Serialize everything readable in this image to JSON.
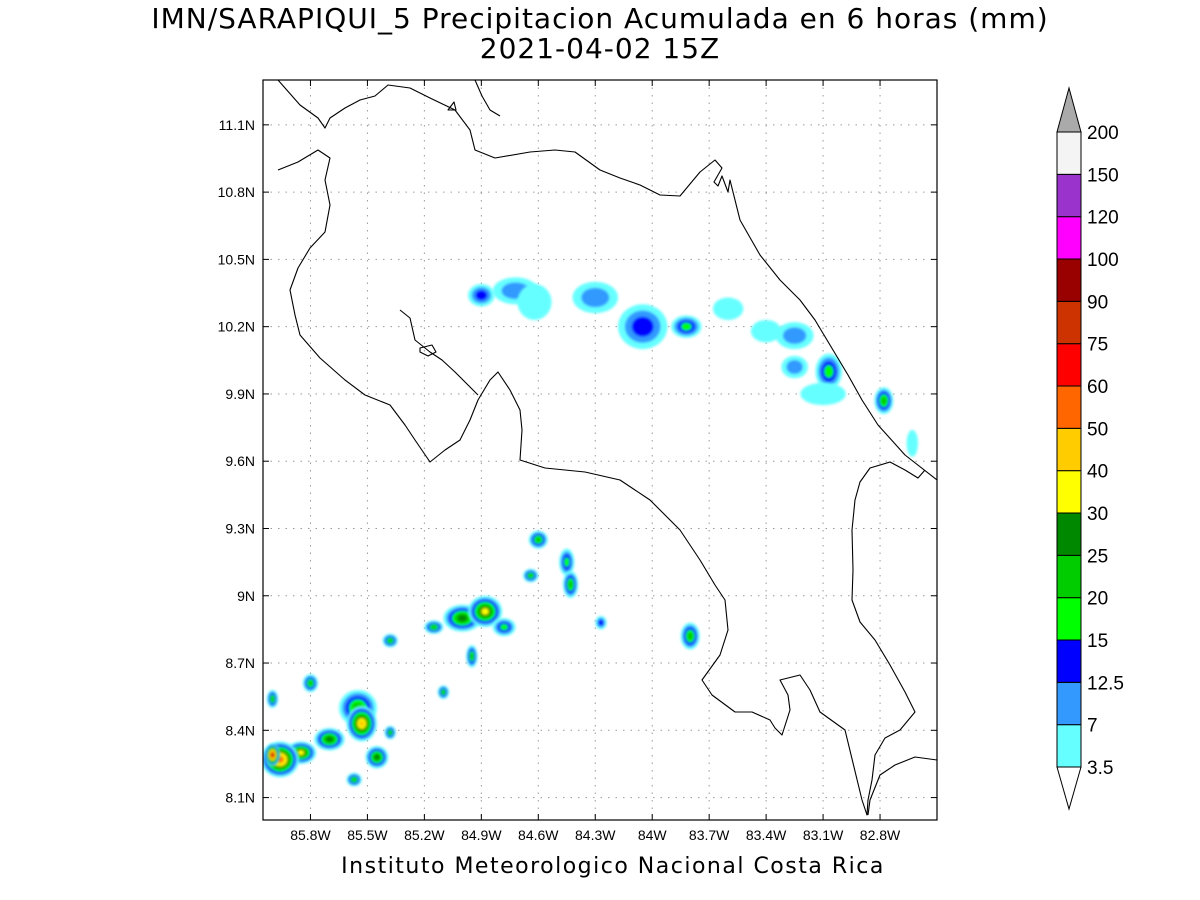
{
  "map": {
    "title": "IMN/SARAPIQUI_5 Precipitacion Acumulada en 6 horas (mm)",
    "subtitle": "2021-04-02 15Z",
    "credit": "Instituto Meteorologico Nacional Costa Rica",
    "lon_range": [
      -86.05,
      -82.5
    ],
    "lat_range": [
      8.0,
      11.3
    ],
    "lon_ticks": [
      {
        "value": -85.8,
        "label": "85.8W"
      },
      {
        "value": -85.5,
        "label": "85.5W"
      },
      {
        "value": -85.2,
        "label": "85.2W"
      },
      {
        "value": -84.9,
        "label": "84.9W"
      },
      {
        "value": -84.6,
        "label": "84.6W"
      },
      {
        "value": -84.3,
        "label": "84.3W"
      },
      {
        "value": -84.0,
        "label": "84W"
      },
      {
        "value": -83.7,
        "label": "83.7W"
      },
      {
        "value": -83.4,
        "label": "83.4W"
      },
      {
        "value": -83.1,
        "label": "83.1W"
      },
      {
        "value": -82.8,
        "label": "82.8W"
      }
    ],
    "lat_ticks": [
      {
        "value": 8.1,
        "label": "8.1N"
      },
      {
        "value": 8.4,
        "label": "8.4N"
      },
      {
        "value": 8.7,
        "label": "8.7N"
      },
      {
        "value": 9.0,
        "label": "9N"
      },
      {
        "value": 9.3,
        "label": "9.3N"
      },
      {
        "value": 9.6,
        "label": "9.6N"
      },
      {
        "value": 9.9,
        "label": "9.9N"
      },
      {
        "value": 10.2,
        "label": "10.2N"
      },
      {
        "value": 10.5,
        "label": "10.5N"
      },
      {
        "value": 10.8,
        "label": "10.8N"
      },
      {
        "value": 11.1,
        "label": "11.1N"
      }
    ],
    "grid": true
  },
  "colorbar": {
    "labels": [
      "3.5",
      "7",
      "12.5",
      "15",
      "20",
      "25",
      "30",
      "40",
      "50",
      "60",
      "75",
      "90",
      "100",
      "120",
      "150",
      "200"
    ],
    "colors": [
      "#66ffff",
      "#3399ff",
      "#0000ff",
      "#00ff00",
      "#00cc00",
      "#008800",
      "#ffff00",
      "#ffcc00",
      "#ff6600",
      "#ff0000",
      "#cc3300",
      "#990000",
      "#ff00ff",
      "#9933cc",
      "#f4f4f4",
      "#aaaaaa"
    ],
    "over_color": "#aaaaaa",
    "under_color": "#ffffff"
  },
  "precip_cells": [
    {
      "lon": -84.9,
      "lat": 10.34,
      "rx": 0.07,
      "ry": 0.05,
      "level": 2
    },
    {
      "lon": -84.72,
      "lat": 10.36,
      "rx": 0.12,
      "ry": 0.06,
      "level": 1
    },
    {
      "lon": -84.62,
      "lat": 10.31,
      "rx": 0.09,
      "ry": 0.08,
      "level": 0
    },
    {
      "lon": -84.3,
      "lat": 10.33,
      "rx": 0.12,
      "ry": 0.07,
      "level": 1
    },
    {
      "lon": -84.05,
      "lat": 10.2,
      "rx": 0.13,
      "ry": 0.1,
      "level": 2
    },
    {
      "lon": -83.82,
      "lat": 10.2,
      "rx": 0.08,
      "ry": 0.05,
      "level": 3
    },
    {
      "lon": -83.6,
      "lat": 10.28,
      "rx": 0.08,
      "ry": 0.05,
      "level": 0
    },
    {
      "lon": -83.4,
      "lat": 10.18,
      "rx": 0.08,
      "ry": 0.05,
      "level": 0
    },
    {
      "lon": -83.25,
      "lat": 10.16,
      "rx": 0.1,
      "ry": 0.06,
      "level": 1
    },
    {
      "lon": -83.25,
      "lat": 10.02,
      "rx": 0.07,
      "ry": 0.05,
      "level": 1
    },
    {
      "lon": -83.07,
      "lat": 10.0,
      "rx": 0.07,
      "ry": 0.08,
      "level": 3
    },
    {
      "lon": -83.1,
      "lat": 9.9,
      "rx": 0.12,
      "ry": 0.05,
      "level": 0
    },
    {
      "lon": -82.78,
      "lat": 9.87,
      "rx": 0.05,
      "ry": 0.06,
      "level": 4
    },
    {
      "lon": -82.63,
      "lat": 9.68,
      "rx": 0.03,
      "ry": 0.06,
      "level": 0
    },
    {
      "lon": -84.6,
      "lat": 9.25,
      "rx": 0.05,
      "ry": 0.04,
      "level": 4
    },
    {
      "lon": -84.45,
      "lat": 9.15,
      "rx": 0.04,
      "ry": 0.06,
      "level": 3
    },
    {
      "lon": -84.43,
      "lat": 9.05,
      "rx": 0.04,
      "ry": 0.06,
      "level": 4
    },
    {
      "lon": -84.64,
      "lat": 9.09,
      "rx": 0.04,
      "ry": 0.03,
      "level": 4
    },
    {
      "lon": -84.27,
      "lat": 8.88,
      "rx": 0.03,
      "ry": 0.03,
      "level": 2
    },
    {
      "lon": -83.8,
      "lat": 8.82,
      "rx": 0.05,
      "ry": 0.06,
      "level": 4
    },
    {
      "lon": -85.38,
      "lat": 8.8,
      "rx": 0.04,
      "ry": 0.03,
      "level": 4
    },
    {
      "lon": -85.15,
      "lat": 8.86,
      "rx": 0.05,
      "ry": 0.03,
      "level": 4
    },
    {
      "lon": -85.0,
      "lat": 8.9,
      "rx": 0.1,
      "ry": 0.06,
      "level": 5
    },
    {
      "lon": -84.88,
      "lat": 8.93,
      "rx": 0.09,
      "ry": 0.07,
      "level": 6
    },
    {
      "lon": -84.78,
      "lat": 8.86,
      "rx": 0.06,
      "ry": 0.04,
      "level": 3
    },
    {
      "lon": -84.95,
      "lat": 8.73,
      "rx": 0.03,
      "ry": 0.05,
      "level": 4
    },
    {
      "lon": -85.8,
      "lat": 8.61,
      "rx": 0.04,
      "ry": 0.04,
      "level": 4
    },
    {
      "lon": -86.0,
      "lat": 8.54,
      "rx": 0.03,
      "ry": 0.04,
      "level": 4
    },
    {
      "lon": -85.55,
      "lat": 8.5,
      "rx": 0.1,
      "ry": 0.08,
      "level": 4
    },
    {
      "lon": -85.53,
      "lat": 8.43,
      "rx": 0.08,
      "ry": 0.08,
      "level": 7
    },
    {
      "lon": -85.45,
      "lat": 8.28,
      "rx": 0.06,
      "ry": 0.05,
      "level": 5
    },
    {
      "lon": -85.7,
      "lat": 8.36,
      "rx": 0.08,
      "ry": 0.05,
      "level": 5
    },
    {
      "lon": -85.85,
      "lat": 8.3,
      "rx": 0.08,
      "ry": 0.05,
      "level": 6
    },
    {
      "lon": -85.96,
      "lat": 8.27,
      "rx": 0.1,
      "ry": 0.08,
      "level": 8
    },
    {
      "lon": -86.0,
      "lat": 8.29,
      "rx": 0.04,
      "ry": 0.05,
      "level": 10
    },
    {
      "lon": -85.57,
      "lat": 8.18,
      "rx": 0.04,
      "ry": 0.03,
      "level": 4
    },
    {
      "lon": -85.38,
      "lat": 8.39,
      "rx": 0.03,
      "ry": 0.03,
      "level": 4
    },
    {
      "lon": -85.1,
      "lat": 8.57,
      "rx": 0.03,
      "ry": 0.03,
      "level": 4
    }
  ]
}
